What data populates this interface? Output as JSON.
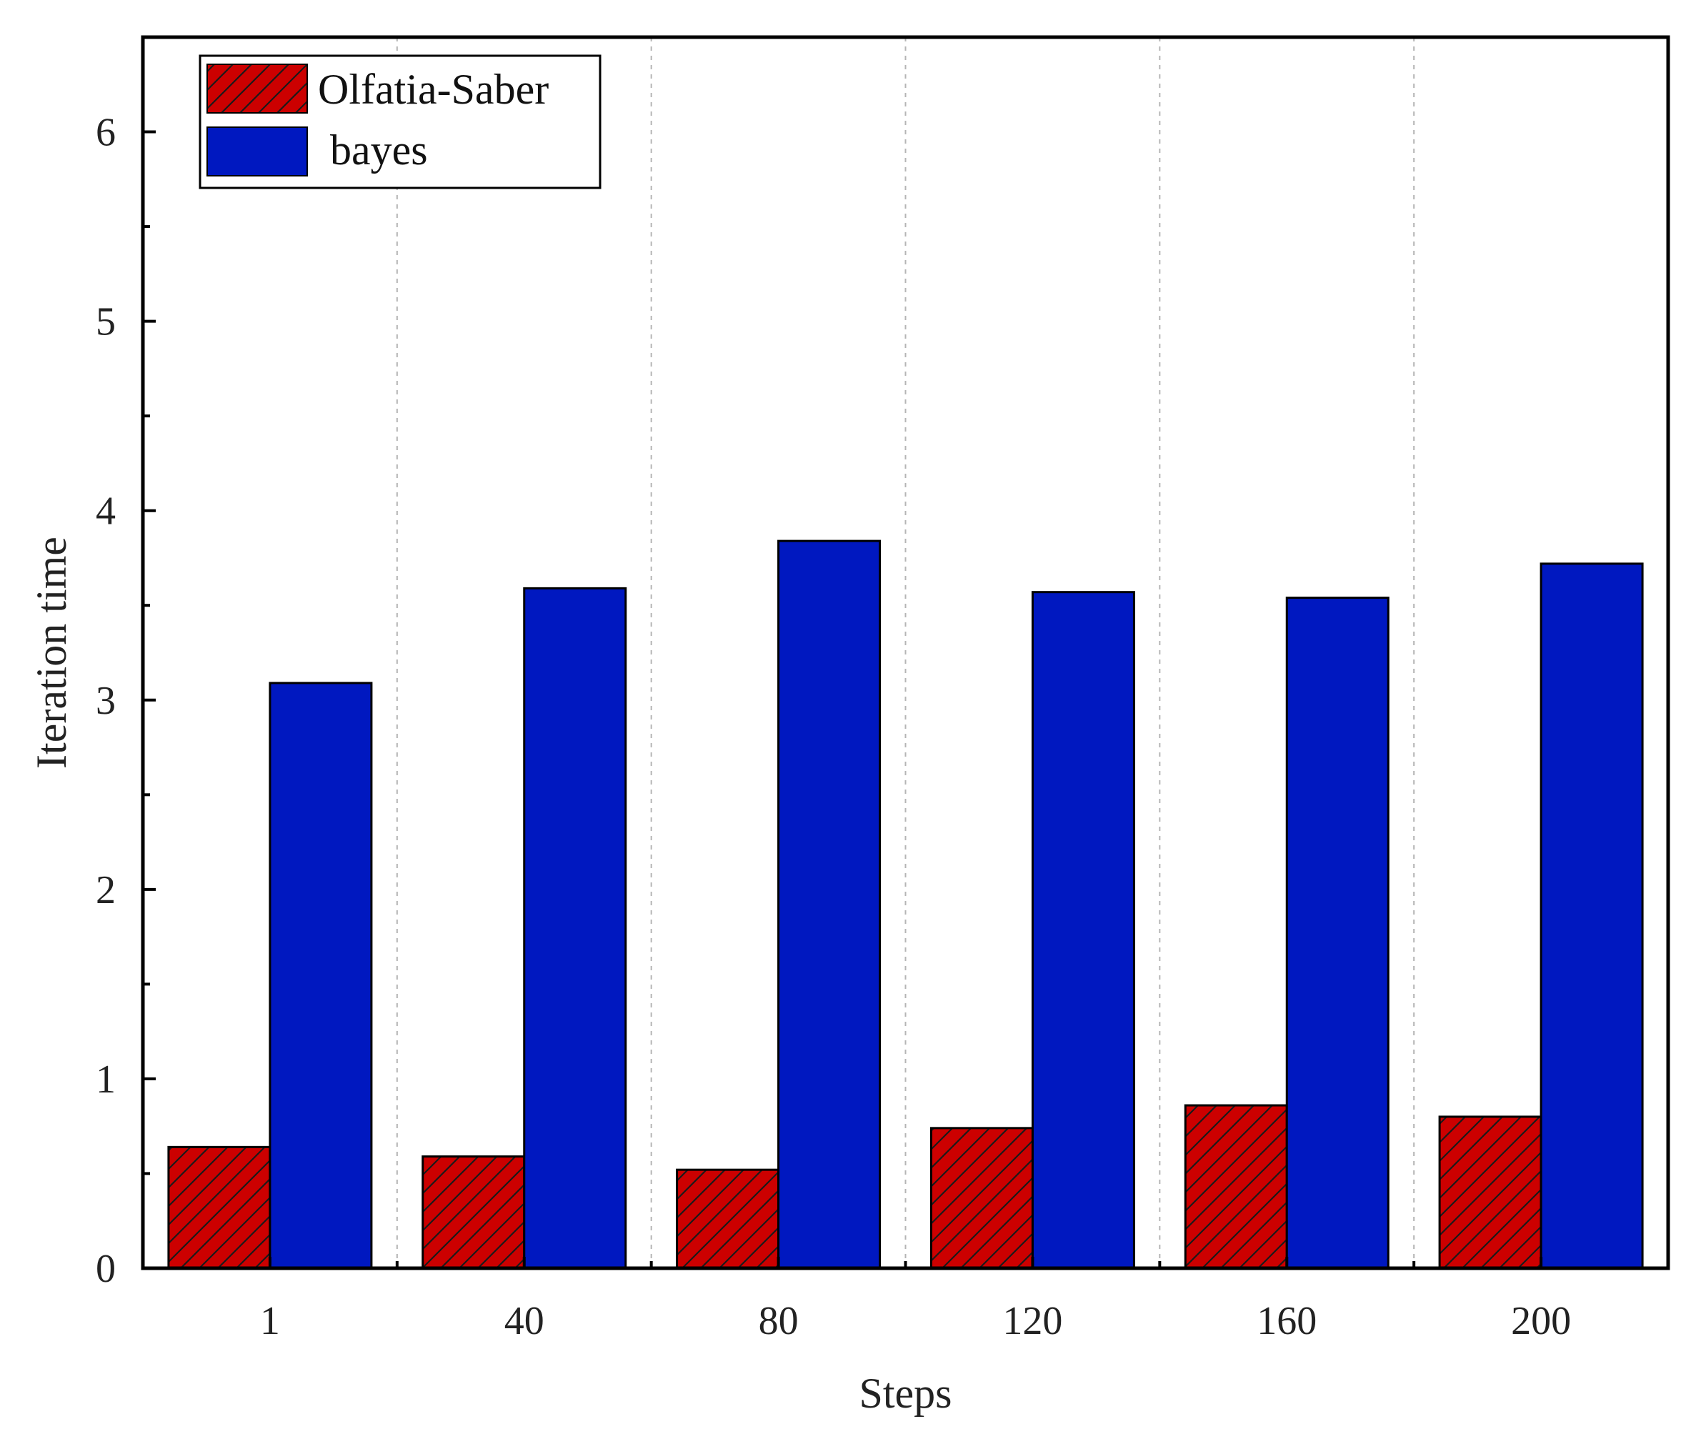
{
  "chart_data": {
    "type": "bar",
    "categories": [
      "1",
      "40",
      "80",
      "120",
      "160",
      "200"
    ],
    "series": [
      {
        "name": "Olfatia-Saber",
        "values": [
          0.64,
          0.59,
          0.52,
          0.74,
          0.86,
          0.8
        ],
        "color": "#cc0000",
        "pattern": "hatched"
      },
      {
        "name": "bayes",
        "values": [
          3.09,
          3.59,
          3.84,
          3.57,
          3.54,
          3.72
        ],
        "color": "#0018c0",
        "pattern": "solid"
      }
    ],
    "xlabel": "Steps",
    "ylabel": "Iteration time",
    "ylim": [
      0,
      6.5
    ],
    "yticks": [
      "0",
      "1",
      "2",
      "3",
      "4",
      "5",
      "6"
    ],
    "grid": "vertical dotted separators between categories",
    "legend_position": "top-left"
  }
}
